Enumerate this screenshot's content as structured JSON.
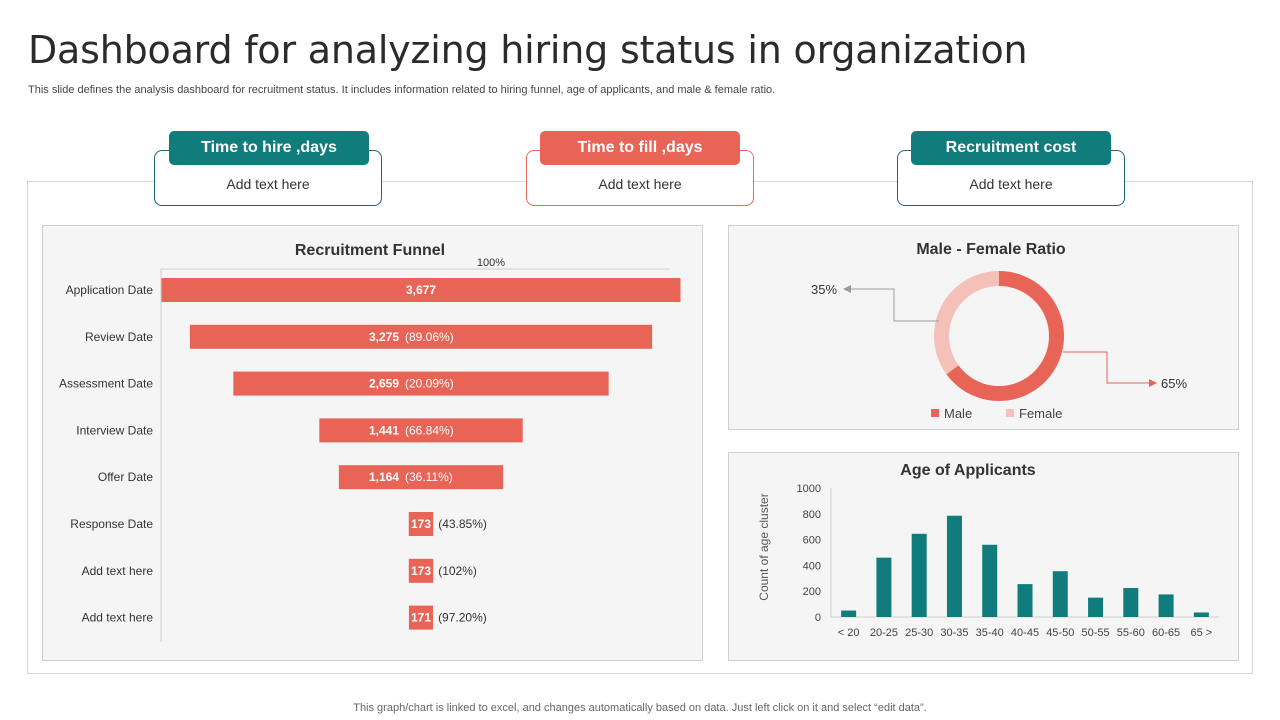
{
  "header": {
    "title": "Dashboard for analyzing hiring status in organization",
    "subtitle": "This slide defines the analysis dashboard for recruitment status. It includes information related to hiring funnel, age of applicants, and male & female ratio."
  },
  "kpis": [
    {
      "label": "Time to hire ,days",
      "value": "Add text here",
      "color": "#107d7c"
    },
    {
      "label": "Time to fill ,days",
      "value": "Add text here",
      "color": "#e86456"
    },
    {
      "label": "Recruitment cost",
      "value": "Add text here",
      "color": "#107d7c"
    }
  ],
  "footer": "This graph/chart is linked to excel, and changes automatically based on data. Just left click on it and select “edit data”.",
  "chart_data": [
    {
      "type": "bar",
      "title": "Recruitment Funnel",
      "top_label": "100%",
      "categories": [
        "Application Date",
        "Review Date",
        "Assessment Date",
        "Interview Date",
        "Offer Date",
        "Response Date",
        "Add text here",
        "Add text here"
      ],
      "values": [
        3677,
        3275,
        2659,
        1441,
        1164,
        173,
        173,
        171
      ],
      "value_labels": [
        "3,677",
        "3,275",
        "2,659",
        "1,441",
        "1,164",
        "173",
        "173",
        "171"
      ],
      "percent_labels": [
        "",
        "(89.06%)",
        "(20.09%)",
        "(66.84%)",
        "(36.11%)",
        "(43.85%)",
        "(102%)",
        "(97.20%)"
      ],
      "color": "#e86456"
    },
    {
      "type": "pie",
      "title": "Male - Female Ratio",
      "categories": [
        "Male",
        "Female"
      ],
      "values": [
        65,
        35
      ],
      "labels": [
        "65%",
        "35%"
      ],
      "colors": [
        "#e86456",
        "#f4c0b8"
      ],
      "legend": "bottom"
    },
    {
      "type": "bar",
      "title": "Age of Applicants",
      "ylabel": "Count of age cluster",
      "categories": [
        "< 20",
        "20-25",
        "25-30",
        "30-35",
        "35-40",
        "40-45",
        "45-50",
        "50-55",
        "55-60",
        "60-65",
        "65 >"
      ],
      "values": [
        50,
        460,
        645,
        785,
        560,
        255,
        355,
        150,
        225,
        175,
        35
      ],
      "ylim": [
        0,
        1000
      ],
      "yticks": [
        0,
        200,
        400,
        600,
        800,
        1000
      ],
      "color": "#107d7c"
    }
  ]
}
